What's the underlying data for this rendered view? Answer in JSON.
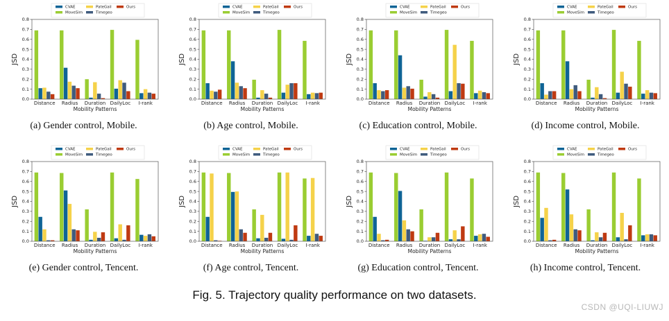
{
  "figure": {
    "caption": "Fig. 5.  Trajectory quality performance on two datasets.",
    "watermark": "CSDN @UQI-LIUWJ"
  },
  "legend": [
    {
      "name": "CVAE",
      "color": "#0f6496"
    },
    {
      "name": "MoveSim",
      "color": "#9acd32"
    },
    {
      "name": "PateGail",
      "color": "#f5d24a"
    },
    {
      "name": "Timegeo",
      "color": "#3f5b7d"
    },
    {
      "name": "Ours",
      "color": "#bf3a12"
    }
  ],
  "chart_data": [
    {
      "type": "bar",
      "id": "a",
      "title": "(a)  Gender control, Mobile.",
      "xlabel": "Mobility Patterns",
      "ylabel": "JSD",
      "ylim": [
        0,
        0.8
      ],
      "yticks": [
        "0.0",
        "0.1",
        "0.2",
        "0.3",
        "0.4",
        "0.5",
        "0.6",
        "0.7",
        "0.8"
      ],
      "categories": [
        "Distance",
        "Radius",
        "Duration",
        "DailyLoc",
        "I-rank"
      ],
      "series": [
        {
          "name": "MoveSim",
          "values": [
            0.69,
            0.69,
            0.2,
            0.695,
            0.595
          ]
        },
        {
          "name": "CVAE",
          "values": [
            0.11,
            0.315,
            0.015,
            0.105,
            0.06
          ]
        },
        {
          "name": "PateGail",
          "values": [
            0.115,
            0.175,
            0.17,
            0.19,
            0.1
          ]
        },
        {
          "name": "Timegeo",
          "values": [
            0.075,
            0.135,
            0.055,
            0.165,
            0.065
          ]
        },
        {
          "name": "Ours",
          "values": [
            0.05,
            0.11,
            0.01,
            0.08,
            0.055
          ]
        }
      ]
    },
    {
      "type": "bar",
      "id": "b",
      "title": "(b)  Age control, Mobile.",
      "xlabel": "Mobility Patterns",
      "ylabel": "JSD",
      "ylim": [
        0,
        0.8
      ],
      "yticks": [
        "0.0",
        "0.1",
        "0.2",
        "0.3",
        "0.4",
        "0.5",
        "0.6",
        "0.7",
        "0.8"
      ],
      "categories": [
        "Distance",
        "Radius",
        "Duration",
        "DailyLoc",
        "I-rank"
      ],
      "series": [
        {
          "name": "MoveSim",
          "values": [
            0.69,
            0.69,
            0.195,
            0.695,
            0.585
          ]
        },
        {
          "name": "CVAE",
          "values": [
            0.16,
            0.38,
            0.015,
            0.065,
            0.05
          ]
        },
        {
          "name": "PateGail",
          "values": [
            0.085,
            0.165,
            0.09,
            0.145,
            0.065
          ]
        },
        {
          "name": "Timegeo",
          "values": [
            0.075,
            0.13,
            0.055,
            0.16,
            0.06
          ]
        },
        {
          "name": "Ours",
          "values": [
            0.095,
            0.11,
            0.015,
            0.16,
            0.065
          ]
        }
      ]
    },
    {
      "type": "bar",
      "id": "c",
      "title": "(c)  Education control, Mobile.",
      "xlabel": "Mobility Patterns",
      "ylabel": "JSD",
      "ylim": [
        0,
        0.8
      ],
      "yticks": [
        "0.0",
        "0.1",
        "0.2",
        "0.3",
        "0.4",
        "0.5",
        "0.6",
        "0.7",
        "0.8"
      ],
      "categories": [
        "Distance",
        "Radius",
        "Duration",
        "DailyLoc",
        "I-rank"
      ],
      "series": [
        {
          "name": "MoveSim",
          "values": [
            0.69,
            0.69,
            0.195,
            0.695,
            0.585
          ]
        },
        {
          "name": "CVAE",
          "values": [
            0.16,
            0.44,
            0.025,
            0.08,
            0.06
          ]
        },
        {
          "name": "PateGail",
          "values": [
            0.09,
            0.115,
            0.07,
            0.545,
            0.085
          ]
        },
        {
          "name": "Timegeo",
          "values": [
            0.08,
            0.13,
            0.05,
            0.16,
            0.07
          ]
        },
        {
          "name": "Ours",
          "values": [
            0.09,
            0.105,
            0.015,
            0.155,
            0.06
          ]
        }
      ]
    },
    {
      "type": "bar",
      "id": "d",
      "title": "(d)  Income control, Mobile.",
      "xlabel": "Mobility Patterns",
      "ylabel": "JSD",
      "ylim": [
        0,
        0.8
      ],
      "yticks": [
        "0.0",
        "0.1",
        "0.2",
        "0.3",
        "0.4",
        "0.5",
        "0.6",
        "0.7",
        "0.8"
      ],
      "categories": [
        "Distance",
        "Radius",
        "Duration",
        "DailyLoc",
        "I-rank"
      ],
      "series": [
        {
          "name": "MoveSim",
          "values": [
            0.69,
            0.69,
            0.195,
            0.695,
            0.585
          ]
        },
        {
          "name": "CVAE",
          "values": [
            0.16,
            0.38,
            0.015,
            0.065,
            0.055
          ]
        },
        {
          "name": "PateGail",
          "values": [
            0.045,
            0.1,
            0.12,
            0.275,
            0.09
          ]
        },
        {
          "name": "Timegeo",
          "values": [
            0.08,
            0.14,
            0.05,
            0.155,
            0.065
          ]
        },
        {
          "name": "Ours",
          "values": [
            0.08,
            0.08,
            0.01,
            0.125,
            0.06
          ]
        }
      ]
    },
    {
      "type": "bar",
      "id": "e",
      "title": "(e)  Gender control, Tencent.",
      "xlabel": "Mobility Patterns",
      "ylabel": "JSD",
      "ylim": [
        0,
        0.8
      ],
      "yticks": [
        "0.0",
        "0.1",
        "0.2",
        "0.3",
        "0.4",
        "0.5",
        "0.6",
        "0.7",
        "0.8"
      ],
      "categories": [
        "Distance",
        "Radius",
        "Duration",
        "DailyLoc",
        "I-rank"
      ],
      "series": [
        {
          "name": "MoveSim",
          "values": [
            0.69,
            0.685,
            0.32,
            0.69,
            0.625
          ]
        },
        {
          "name": "CVAE",
          "values": [
            0.245,
            0.51,
            0.015,
            0.03,
            0.065
          ]
        },
        {
          "name": "PateGail",
          "values": [
            0.12,
            0.375,
            0.095,
            0.17,
            0.055
          ]
        },
        {
          "name": "Timegeo",
          "values": [
            0.01,
            0.12,
            0.035,
            0.015,
            0.07
          ]
        },
        {
          "name": "Ours",
          "values": [
            0.01,
            0.11,
            0.09,
            0.16,
            0.05
          ]
        }
      ]
    },
    {
      "type": "bar",
      "id": "f",
      "title": "(f)  Age control, Tencent.",
      "xlabel": "Mobility Patterns",
      "ylabel": "JSD",
      "ylim": [
        0,
        0.8
      ],
      "yticks": [
        "0.0",
        "0.1",
        "0.2",
        "0.3",
        "0.4",
        "0.5",
        "0.6",
        "0.7",
        "0.8"
      ],
      "categories": [
        "Distance",
        "Radius",
        "Duration",
        "DailyLoc",
        "I-rank"
      ],
      "series": [
        {
          "name": "MoveSim",
          "values": [
            0.69,
            0.685,
            0.32,
            0.69,
            0.63
          ]
        },
        {
          "name": "CVAE",
          "values": [
            0.245,
            0.495,
            0.03,
            0.025,
            0.055
          ]
        },
        {
          "name": "PateGail",
          "values": [
            0.68,
            0.5,
            0.265,
            0.69,
            0.635
          ]
        },
        {
          "name": "Timegeo",
          "values": [
            0.01,
            0.12,
            0.035,
            0.015,
            0.075
          ]
        },
        {
          "name": "Ours",
          "values": [
            0.005,
            0.085,
            0.085,
            0.16,
            0.055
          ]
        }
      ]
    },
    {
      "type": "bar",
      "id": "g",
      "title": "(g)  Education control, Tencent.",
      "xlabel": "Mobility Patterns",
      "ylabel": "JSD",
      "ylim": [
        0,
        0.8
      ],
      "yticks": [
        "0.0",
        "0.1",
        "0.2",
        "0.3",
        "0.4",
        "0.5",
        "0.6",
        "0.7",
        "0.8"
      ],
      "categories": [
        "Distance",
        "Radius",
        "Duration",
        "DailyLoc",
        "I-rank"
      ],
      "series": [
        {
          "name": "MoveSim",
          "values": [
            0.69,
            0.685,
            0.32,
            0.69,
            0.63
          ]
        },
        {
          "name": "CVAE",
          "values": [
            0.245,
            0.505,
            0.005,
            0.02,
            0.055
          ]
        },
        {
          "name": "PateGail",
          "values": [
            0.075,
            0.21,
            0.04,
            0.11,
            0.07
          ]
        },
        {
          "name": "Timegeo",
          "values": [
            0.01,
            0.12,
            0.04,
            0.02,
            0.075
          ]
        },
        {
          "name": "Ours",
          "values": [
            0.015,
            0.1,
            0.085,
            0.15,
            0.045
          ]
        }
      ]
    },
    {
      "type": "bar",
      "id": "h",
      "title": "(h)  Income control, Tencent.",
      "xlabel": "Mobility Patterns",
      "ylabel": "JSD",
      "ylim": [
        0,
        0.8
      ],
      "yticks": [
        "0.0",
        "0.1",
        "0.2",
        "0.3",
        "0.4",
        "0.5",
        "0.6",
        "0.7",
        "0.8"
      ],
      "categories": [
        "Distance",
        "Radius",
        "Duration",
        "DailyLoc",
        "I-rank"
      ],
      "series": [
        {
          "name": "MoveSim",
          "values": [
            0.69,
            0.685,
            0.32,
            0.69,
            0.63
          ]
        },
        {
          "name": "CVAE",
          "values": [
            0.235,
            0.52,
            0.01,
            0.04,
            0.06
          ]
        },
        {
          "name": "PateGail",
          "values": [
            0.335,
            0.27,
            0.09,
            0.285,
            0.07
          ]
        },
        {
          "name": "Timegeo",
          "values": [
            0.01,
            0.12,
            0.04,
            0.02,
            0.07
          ]
        },
        {
          "name": "Ours",
          "values": [
            0.015,
            0.11,
            0.085,
            0.16,
            0.06
          ]
        }
      ]
    }
  ]
}
